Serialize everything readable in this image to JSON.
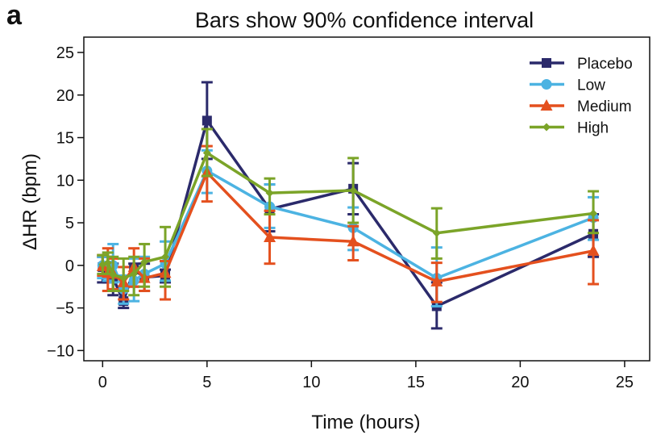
{
  "panel_label": "a",
  "chart_data": {
    "type": "line",
    "title": "Bars show 90% confidence interval",
    "xlabel": "Time (hours)",
    "ylabel": "ΔHR (bpm)",
    "xlim": [
      -0.9,
      26.2
    ],
    "ylim": [
      -11.2,
      26.8
    ],
    "xticks": [
      0,
      5,
      10,
      15,
      20,
      25
    ],
    "yticks": [
      -10,
      -5,
      0,
      5,
      10,
      15,
      20,
      25
    ],
    "grid": false,
    "legend_position": "top-right",
    "series": [
      {
        "name": "Placebo",
        "color": "#2b2a6b",
        "marker": "square",
        "x": [
          0,
          0.25,
          0.5,
          1,
          1.5,
          2,
          3,
          5,
          8,
          12,
          16,
          23.5
        ],
        "y": [
          -0.2,
          -0.4,
          -1.5,
          -4.2,
          -0.5,
          -1.4,
          -1.2,
          17.0,
          6.6,
          9.0,
          -4.8,
          3.7
        ],
        "lower": [
          -2.0,
          -2.0,
          -3.5,
          -5.0,
          -2.5,
          -3.0,
          -2.0,
          12.5,
          4.0,
          6.0,
          -7.4,
          1.0
        ],
        "upper": [
          1.0,
          1.0,
          0.2,
          -2.5,
          0.2,
          0.2,
          -0.5,
          21.5,
          9.5,
          12.0,
          -2.0,
          6.0
        ]
      },
      {
        "name": "Low",
        "color": "#4cb3e2",
        "marker": "circle",
        "x": [
          0,
          0.25,
          0.5,
          1,
          1.5,
          2,
          3,
          5,
          8,
          12,
          16,
          23.5
        ],
        "y": [
          0.0,
          -0.1,
          0.0,
          -2.8,
          -1.8,
          -1.0,
          0.2,
          11.1,
          6.9,
          4.4,
          -1.5,
          5.6
        ],
        "lower": [
          -1.5,
          -1.8,
          -2.0,
          -4.5,
          -4.2,
          -3.0,
          -1.8,
          8.5,
          4.4,
          1.8,
          -4.8,
          3.0
        ],
        "upper": [
          1.0,
          1.5,
          2.5,
          -1.2,
          0.8,
          1.0,
          2.8,
          13.5,
          9.5,
          6.8,
          2.1,
          8.0
        ]
      },
      {
        "name": "Medium",
        "color": "#e4501e",
        "marker": "triangle",
        "x": [
          0,
          0.25,
          0.5,
          1,
          1.5,
          2,
          3,
          5,
          8,
          12,
          16,
          23.5
        ],
        "y": [
          -0.1,
          -0.9,
          -1.0,
          -2.0,
          -0.2,
          -1.5,
          -0.9,
          10.9,
          3.3,
          2.8,
          -1.9,
          1.7
        ],
        "lower": [
          -1.2,
          -3.0,
          -2.8,
          -4.0,
          -2.5,
          -3.0,
          -4.0,
          7.5,
          0.2,
          0.6,
          -4.3,
          -2.2
        ],
        "upper": [
          1.2,
          2.0,
          0.8,
          -0.2,
          2.0,
          0.8,
          0.5,
          14.0,
          6.4,
          4.6,
          0.3,
          5.3
        ]
      },
      {
        "name": "High",
        "color": "#7ba428",
        "marker": "diamond",
        "x": [
          0,
          0.25,
          0.5,
          1,
          1.5,
          2,
          3,
          5,
          8,
          12,
          16,
          23.5
        ],
        "y": [
          0.1,
          0.3,
          -1.1,
          -1.5,
          -1.0,
          0.4,
          1.0,
          13.2,
          8.5,
          8.8,
          3.8,
          6.1
        ],
        "lower": [
          -1.0,
          -1.0,
          -3.0,
          -3.0,
          -3.5,
          -2.5,
          -2.5,
          10.5,
          6.0,
          5.0,
          0.8,
          3.8
        ],
        "upper": [
          1.2,
          1.5,
          1.0,
          0.8,
          1.0,
          2.5,
          4.5,
          16.0,
          10.2,
          12.6,
          6.7,
          8.7
        ]
      }
    ]
  }
}
